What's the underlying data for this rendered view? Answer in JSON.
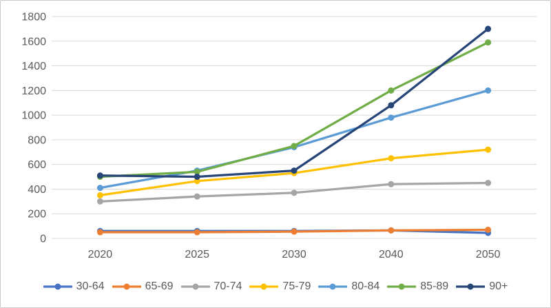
{
  "chart_data": {
    "type": "line",
    "title": "",
    "xlabel": "",
    "ylabel": "",
    "categories": [
      "2020",
      "2025",
      "2030",
      "2040",
      "2050"
    ],
    "series": [
      {
        "name": "30-64",
        "color": "#4472C4",
        "values": [
          60,
          60,
          60,
          65,
          45
        ]
      },
      {
        "name": "65-69",
        "color": "#ED7D31",
        "values": [
          50,
          50,
          55,
          65,
          70
        ]
      },
      {
        "name": "70-74",
        "color": "#A5A5A5",
        "values": [
          300,
          340,
          370,
          440,
          450
        ]
      },
      {
        "name": "75-79",
        "color": "#FFC000",
        "values": [
          350,
          465,
          530,
          650,
          720
        ]
      },
      {
        "name": "80-84",
        "color": "#5B9BD5",
        "values": [
          410,
          550,
          740,
          980,
          1200
        ]
      },
      {
        "name": "85-89",
        "color": "#70AD47",
        "values": [
          500,
          540,
          750,
          1200,
          1590
        ]
      },
      {
        "name": "90+",
        "color": "#264478",
        "values": [
          510,
          500,
          550,
          1080,
          1700
        ]
      }
    ],
    "ylim": [
      0,
      1800
    ],
    "yticks": [
      0,
      200,
      400,
      600,
      800,
      1000,
      1200,
      1400,
      1600,
      1800
    ],
    "grid": true,
    "legend_position": "bottom"
  },
  "colors": {
    "grid": "#D9D9D9",
    "axis_text": "#595959",
    "background": "#FFFFFF",
    "frame_border": "#C9C9C9"
  }
}
